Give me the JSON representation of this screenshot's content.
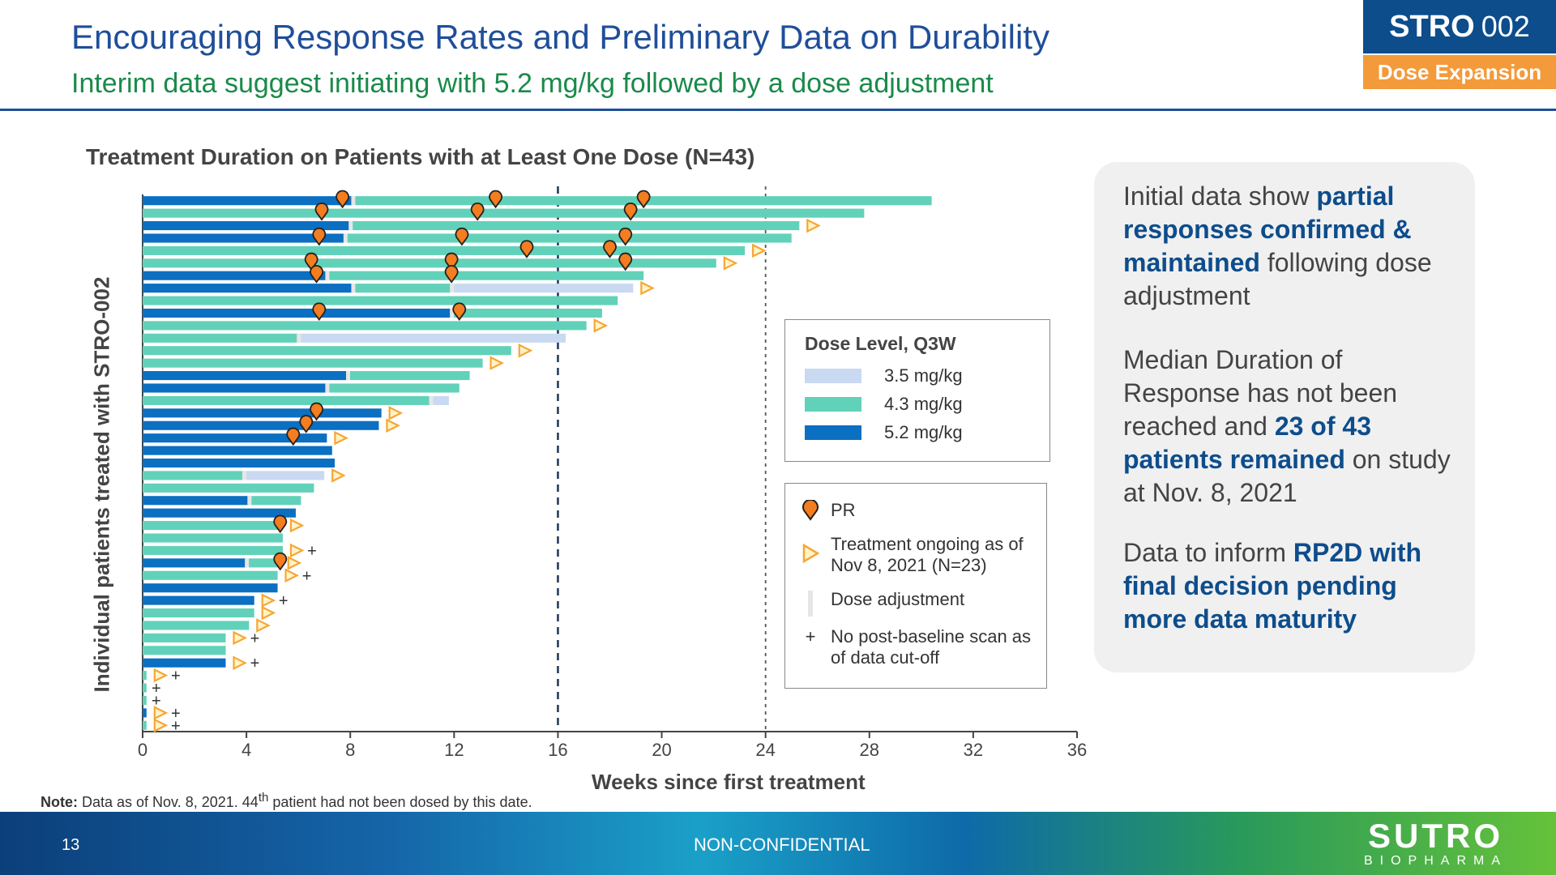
{
  "header": {
    "title": "Encouraging Response Rates and Preliminary Data on Durability",
    "subtitle": "Interim data suggest initiating with 5.2 mg/kg followed by a dose adjustment",
    "badge_strong": "STRO",
    "badge_number": "002",
    "badge_sub": "Dose Expansion"
  },
  "chart_data": {
    "type": "bar",
    "orientation": "horizontal",
    "title": "Treatment Duration on Patients with at Least One Dose (N=43)",
    "xlabel": "Weeks since first treatment",
    "ylabel": "Individual patients treated with STRO-002",
    "xlim": [
      0,
      36
    ],
    "xticks": [
      0,
      4,
      8,
      12,
      16,
      20,
      24,
      28,
      32,
      36
    ],
    "reference_lines": [
      16,
      24
    ],
    "colors": {
      "3.5 mg/kg": "#c9d9f1",
      "4.3 mg/kg": "#62d1b9",
      "5.2 mg/kg": "#0b6fc2",
      "dose_adjustment": "#e6e6e6",
      "pr": "#f37d1f",
      "ongoing": "#f7a634"
    },
    "patients": [
      {
        "segments": [
          [
            "5.2",
            8.1
          ],
          [
            "4.3",
            22.3
          ]
        ],
        "pr": [
          7.7,
          13.6,
          19.3
        ],
        "ongoing": false,
        "no_scan": false
      },
      {
        "segments": [
          [
            "4.3",
            27.8
          ]
        ],
        "pr": [
          6.9,
          12.9,
          18.8
        ],
        "ongoing": false,
        "no_scan": false
      },
      {
        "segments": [
          [
            "5.2",
            8.0
          ],
          [
            "4.3",
            17.3
          ]
        ],
        "pr": [],
        "ongoing": true,
        "no_scan": false
      },
      {
        "segments": [
          [
            "5.2",
            7.8
          ],
          [
            "4.3",
            17.2
          ]
        ],
        "pr": [
          6.8,
          12.3,
          18.6
        ],
        "ongoing": false,
        "no_scan": false
      },
      {
        "segments": [
          [
            "4.3",
            23.2
          ]
        ],
        "pr": [
          14.8,
          18.0
        ],
        "ongoing": true,
        "no_scan": false
      },
      {
        "segments": [
          [
            "4.3",
            22.1
          ]
        ],
        "pr": [
          6.5,
          11.9,
          18.6
        ],
        "ongoing": true,
        "no_scan": false
      },
      {
        "segments": [
          [
            "5.2",
            7.1
          ],
          [
            "4.3",
            12.2
          ]
        ],
        "pr": [
          6.7,
          11.9
        ],
        "ongoing": false,
        "no_scan": false
      },
      {
        "segments": [
          [
            "5.2",
            8.1
          ],
          [
            "4.3",
            3.8
          ],
          [
            "3.5",
            7.0
          ]
        ],
        "pr": [],
        "ongoing": true,
        "no_scan": false
      },
      {
        "segments": [
          [
            "4.3",
            18.3
          ]
        ],
        "pr": [],
        "ongoing": false,
        "no_scan": false
      },
      {
        "segments": [
          [
            "5.2",
            11.9
          ],
          [
            "4.3",
            5.8
          ]
        ],
        "pr": [
          6.8,
          12.2
        ],
        "ongoing": false,
        "no_scan": false
      },
      {
        "segments": [
          [
            "4.3",
            17.1
          ]
        ],
        "pr": [],
        "ongoing": true,
        "no_scan": false
      },
      {
        "segments": [
          [
            "4.3",
            6.0
          ],
          [
            "3.5",
            10.3
          ]
        ],
        "pr": [],
        "ongoing": false,
        "no_scan": false
      },
      {
        "segments": [
          [
            "4.3",
            14.2
          ]
        ],
        "pr": [],
        "ongoing": true,
        "no_scan": false
      },
      {
        "segments": [
          [
            "4.3",
            13.1
          ]
        ],
        "pr": [],
        "ongoing": true,
        "no_scan": false
      },
      {
        "segments": [
          [
            "5.2",
            7.9
          ],
          [
            "4.3",
            4.7
          ]
        ],
        "pr": [],
        "ongoing": false,
        "no_scan": false
      },
      {
        "segments": [
          [
            "5.2",
            7.1
          ],
          [
            "4.3",
            5.1
          ]
        ],
        "pr": [],
        "ongoing": false,
        "no_scan": false
      },
      {
        "segments": [
          [
            "4.3",
            11.1
          ],
          [
            "3.5",
            0.7
          ]
        ],
        "pr": [],
        "ongoing": false,
        "no_scan": false
      },
      {
        "segments": [
          [
            "5.2",
            9.2
          ]
        ],
        "pr": [
          6.7
        ],
        "ongoing": true,
        "no_scan": false
      },
      {
        "segments": [
          [
            "5.2",
            9.1
          ]
        ],
        "pr": [
          6.3
        ],
        "ongoing": true,
        "no_scan": false
      },
      {
        "segments": [
          [
            "5.2",
            7.1
          ]
        ],
        "pr": [
          5.8
        ],
        "ongoing": true,
        "no_scan": false
      },
      {
        "segments": [
          [
            "5.2",
            7.3
          ]
        ],
        "pr": [],
        "ongoing": false,
        "no_scan": false
      },
      {
        "segments": [
          [
            "5.2",
            7.4
          ]
        ],
        "pr": [],
        "ongoing": false,
        "no_scan": false
      },
      {
        "segments": [
          [
            "4.3",
            3.9
          ],
          [
            "3.5",
            3.1
          ]
        ],
        "pr": [],
        "ongoing": true,
        "no_scan": false
      },
      {
        "segments": [
          [
            "4.3",
            6.6
          ]
        ],
        "pr": [],
        "ongoing": false,
        "no_scan": false
      },
      {
        "segments": [
          [
            "5.2",
            4.1
          ],
          [
            "4.3",
            2.0
          ]
        ],
        "pr": [],
        "ongoing": false,
        "no_scan": false
      },
      {
        "segments": [
          [
            "5.2",
            5.9
          ]
        ],
        "pr": [],
        "ongoing": false,
        "no_scan": false
      },
      {
        "segments": [
          [
            "4.3",
            5.4
          ]
        ],
        "pr": [
          5.3
        ],
        "ongoing": true,
        "no_scan": false
      },
      {
        "segments": [
          [
            "4.3",
            5.4
          ]
        ],
        "pr": [],
        "ongoing": false,
        "no_scan": false
      },
      {
        "segments": [
          [
            "4.3",
            5.4
          ]
        ],
        "pr": [],
        "ongoing": true,
        "no_scan": true
      },
      {
        "segments": [
          [
            "5.2",
            4.0
          ],
          [
            "4.3",
            1.3
          ]
        ],
        "pr": [
          5.3
        ],
        "ongoing": true,
        "no_scan": false
      },
      {
        "segments": [
          [
            "4.3",
            5.2
          ]
        ],
        "pr": [],
        "ongoing": true,
        "no_scan": true
      },
      {
        "segments": [
          [
            "5.2",
            5.2
          ]
        ],
        "pr": [],
        "ongoing": false,
        "no_scan": false
      },
      {
        "segments": [
          [
            "5.2",
            4.3
          ]
        ],
        "pr": [],
        "ongoing": true,
        "no_scan": true
      },
      {
        "segments": [
          [
            "4.3",
            4.3
          ]
        ],
        "pr": [],
        "ongoing": true,
        "no_scan": false
      },
      {
        "segments": [
          [
            "4.3",
            4.1
          ]
        ],
        "pr": [],
        "ongoing": true,
        "no_scan": false
      },
      {
        "segments": [
          [
            "4.3",
            3.2
          ]
        ],
        "pr": [],
        "ongoing": true,
        "no_scan": true
      },
      {
        "segments": [
          [
            "4.3",
            3.2
          ]
        ],
        "pr": [],
        "ongoing": false,
        "no_scan": false
      },
      {
        "segments": [
          [
            "5.2",
            3.2
          ]
        ],
        "pr": [],
        "ongoing": true,
        "no_scan": true
      },
      {
        "segments": [
          [
            "4.3",
            0.15
          ]
        ],
        "pr": [],
        "ongoing": true,
        "no_scan": true
      },
      {
        "segments": [
          [
            "4.3",
            0.15
          ]
        ],
        "pr": [],
        "ongoing": false,
        "no_scan": true
      },
      {
        "segments": [
          [
            "4.3",
            0.15
          ]
        ],
        "pr": [],
        "ongoing": false,
        "no_scan": true
      },
      {
        "segments": [
          [
            "5.2",
            0.15
          ]
        ],
        "pr": [],
        "ongoing": true,
        "no_scan": true
      },
      {
        "segments": [
          [
            "4.3",
            0.15
          ]
        ],
        "pr": [],
        "ongoing": true,
        "no_scan": true
      }
    ]
  },
  "legend_dose": {
    "title": "Dose Level, Q3W",
    "items": [
      {
        "label": "3.5 mg/kg",
        "color": "#c9d9f1"
      },
      {
        "label": "4.3 mg/kg",
        "color": "#62d1b9"
      },
      {
        "label": "5.2 mg/kg",
        "color": "#0b6fc2"
      }
    ]
  },
  "legend_symbols": {
    "pr": "PR",
    "ongoing": "Treatment ongoing as of Nov 8, 2021 (N=23)",
    "dose_adjustment": "Dose adjustment",
    "plus_symbol": "+",
    "no_scan": "No post-baseline scan as of data cut-off"
  },
  "side_panel": {
    "p1_a": "Initial data show ",
    "p1_b": "partial responses confirmed & maintained",
    "p1_c": " following dose adjustment",
    "p2_a": "Median Duration of Response has not been reached and ",
    "p2_b": "23 of 43 patients remained",
    "p2_c": " on study at Nov. 8, 2021",
    "p3_a": "Data to inform ",
    "p3_b": "RP2D with final decision pending more data maturity"
  },
  "note": {
    "label": "Note:",
    "text_before": " Data as of Nov. 8, 2021. 44",
    "superscript": "th",
    "text_after": " patient had not been dosed by this date."
  },
  "footer": {
    "page_number": "13",
    "confidentiality": "NON-CONFIDENTIAL",
    "logo_main": "SUTRO",
    "logo_sub": "BIOPHARMA"
  }
}
